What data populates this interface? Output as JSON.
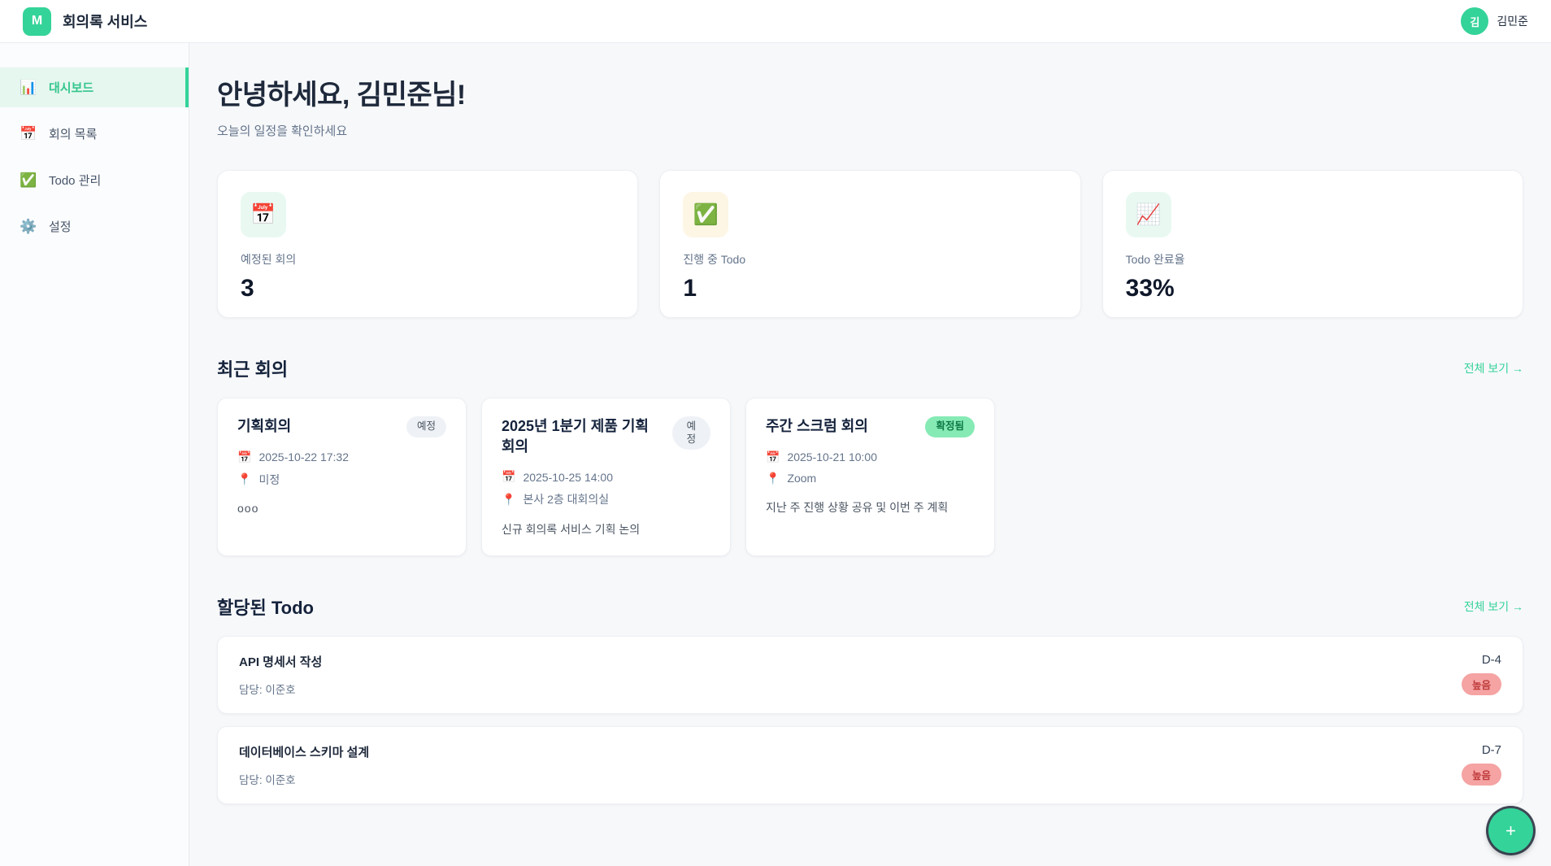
{
  "colors": {
    "accent": "#34d399",
    "active_bg": "#e6f7ef",
    "badge_scheduled_bg": "#eef1f5",
    "badge_confirmed_bg": "#86eab5",
    "priority_high_bg": "#f5a3a3",
    "priority_high_text": "#bf3a3a"
  },
  "header": {
    "logo_letter": "M",
    "app_title": "회의록 서비스",
    "user": {
      "avatar_initial": "김",
      "name": "김민준"
    }
  },
  "sidebar": {
    "items": [
      {
        "icon": "📊",
        "label": "대시보드",
        "active": true
      },
      {
        "icon": "📅",
        "label": "회의 목록",
        "active": false
      },
      {
        "icon": "✅",
        "label": "Todo 관리",
        "active": false
      },
      {
        "icon": "⚙️",
        "label": "설정",
        "active": false
      }
    ]
  },
  "greeting": {
    "title": "안녕하세요, 김민준님!",
    "subtitle": "오늘의 일정을 확인하세요"
  },
  "stats": [
    {
      "icon": "📅",
      "label": "예정된 회의",
      "value": "3"
    },
    {
      "icon": "✅",
      "label": "진행 중 Todo",
      "value": "1"
    },
    {
      "icon": "📈",
      "label": "Todo 완료율",
      "value": "33%"
    }
  ],
  "meetings_section": {
    "title": "최근 회의",
    "view_all": "전체 보기 →",
    "cards": [
      {
        "title": "기획회의",
        "status": "예정",
        "calendar_icon": "📅",
        "datetime": "2025-10-22 17:32",
        "pin_icon": "📍",
        "location": "미정",
        "description": "ooo"
      },
      {
        "title": "2025년 1분기 제품 기획 회의",
        "status": "예정",
        "calendar_icon": "📅",
        "datetime": "2025-10-25 14:00",
        "pin_icon": "📍",
        "location": "본사 2층 대회의실",
        "description": "신규 회의록 서비스 기획 논의"
      },
      {
        "title": "주간 스크럼 회의",
        "status": "확정됨",
        "calendar_icon": "📅",
        "datetime": "2025-10-21 10:00",
        "pin_icon": "📍",
        "location": "Zoom",
        "description": "지난 주 진행 상황 공유 및 이번 주 계획"
      }
    ]
  },
  "todos_section": {
    "title": "할당된 Todo",
    "view_all": "전체 보기 →",
    "items": [
      {
        "title": "API 명세서 작성",
        "assignee": "담당: 이준호",
        "dday": "D-4",
        "priority": "높음"
      },
      {
        "title": "데이터베이스 스키마 설계",
        "assignee": "담당: 이준호",
        "dday": "D-7",
        "priority": "높음"
      }
    ]
  },
  "fab": {
    "label": "+"
  }
}
